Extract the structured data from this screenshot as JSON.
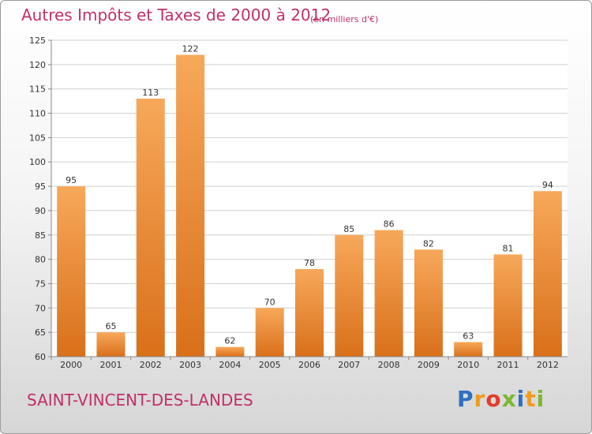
{
  "header": {
    "title": "Autres Impôts et Taxes de 2000 à 2012",
    "unit": "(en milliers d'€)"
  },
  "footer": {
    "commune": "SAINT-VINCENT-DES-LANDES",
    "logo_letters": [
      "P",
      "r",
      "o",
      "x",
      "i",
      "t",
      "i"
    ],
    "logo_colors": [
      "#2e6fc0",
      "#f39a1c",
      "#e23c2c",
      "#7cb82f",
      "#2e6fc0",
      "#f39a1c",
      "#7cb82f"
    ]
  },
  "colors": {
    "title": "#c0306a",
    "bar_top": "#f7a85a",
    "bar_bottom": "#d9701a",
    "grid": "#cfcfcf",
    "plot_bg": "#ffffff"
  },
  "chart_data": {
    "type": "bar",
    "categories": [
      "2000",
      "2001",
      "2002",
      "2003",
      "2004",
      "2005",
      "2006",
      "2007",
      "2008",
      "2009",
      "2010",
      "2011",
      "2012"
    ],
    "values": [
      95,
      65,
      113,
      122,
      62,
      70,
      78,
      85,
      86,
      82,
      63,
      81,
      94
    ],
    "ylim": [
      60,
      125
    ],
    "yticks": [
      60,
      65,
      70,
      75,
      80,
      85,
      90,
      95,
      100,
      105,
      110,
      115,
      120,
      125
    ],
    "grid": true,
    "title": "Autres Impôts et Taxes de 2000 à 2012",
    "xlabel": "",
    "ylabel": ""
  }
}
